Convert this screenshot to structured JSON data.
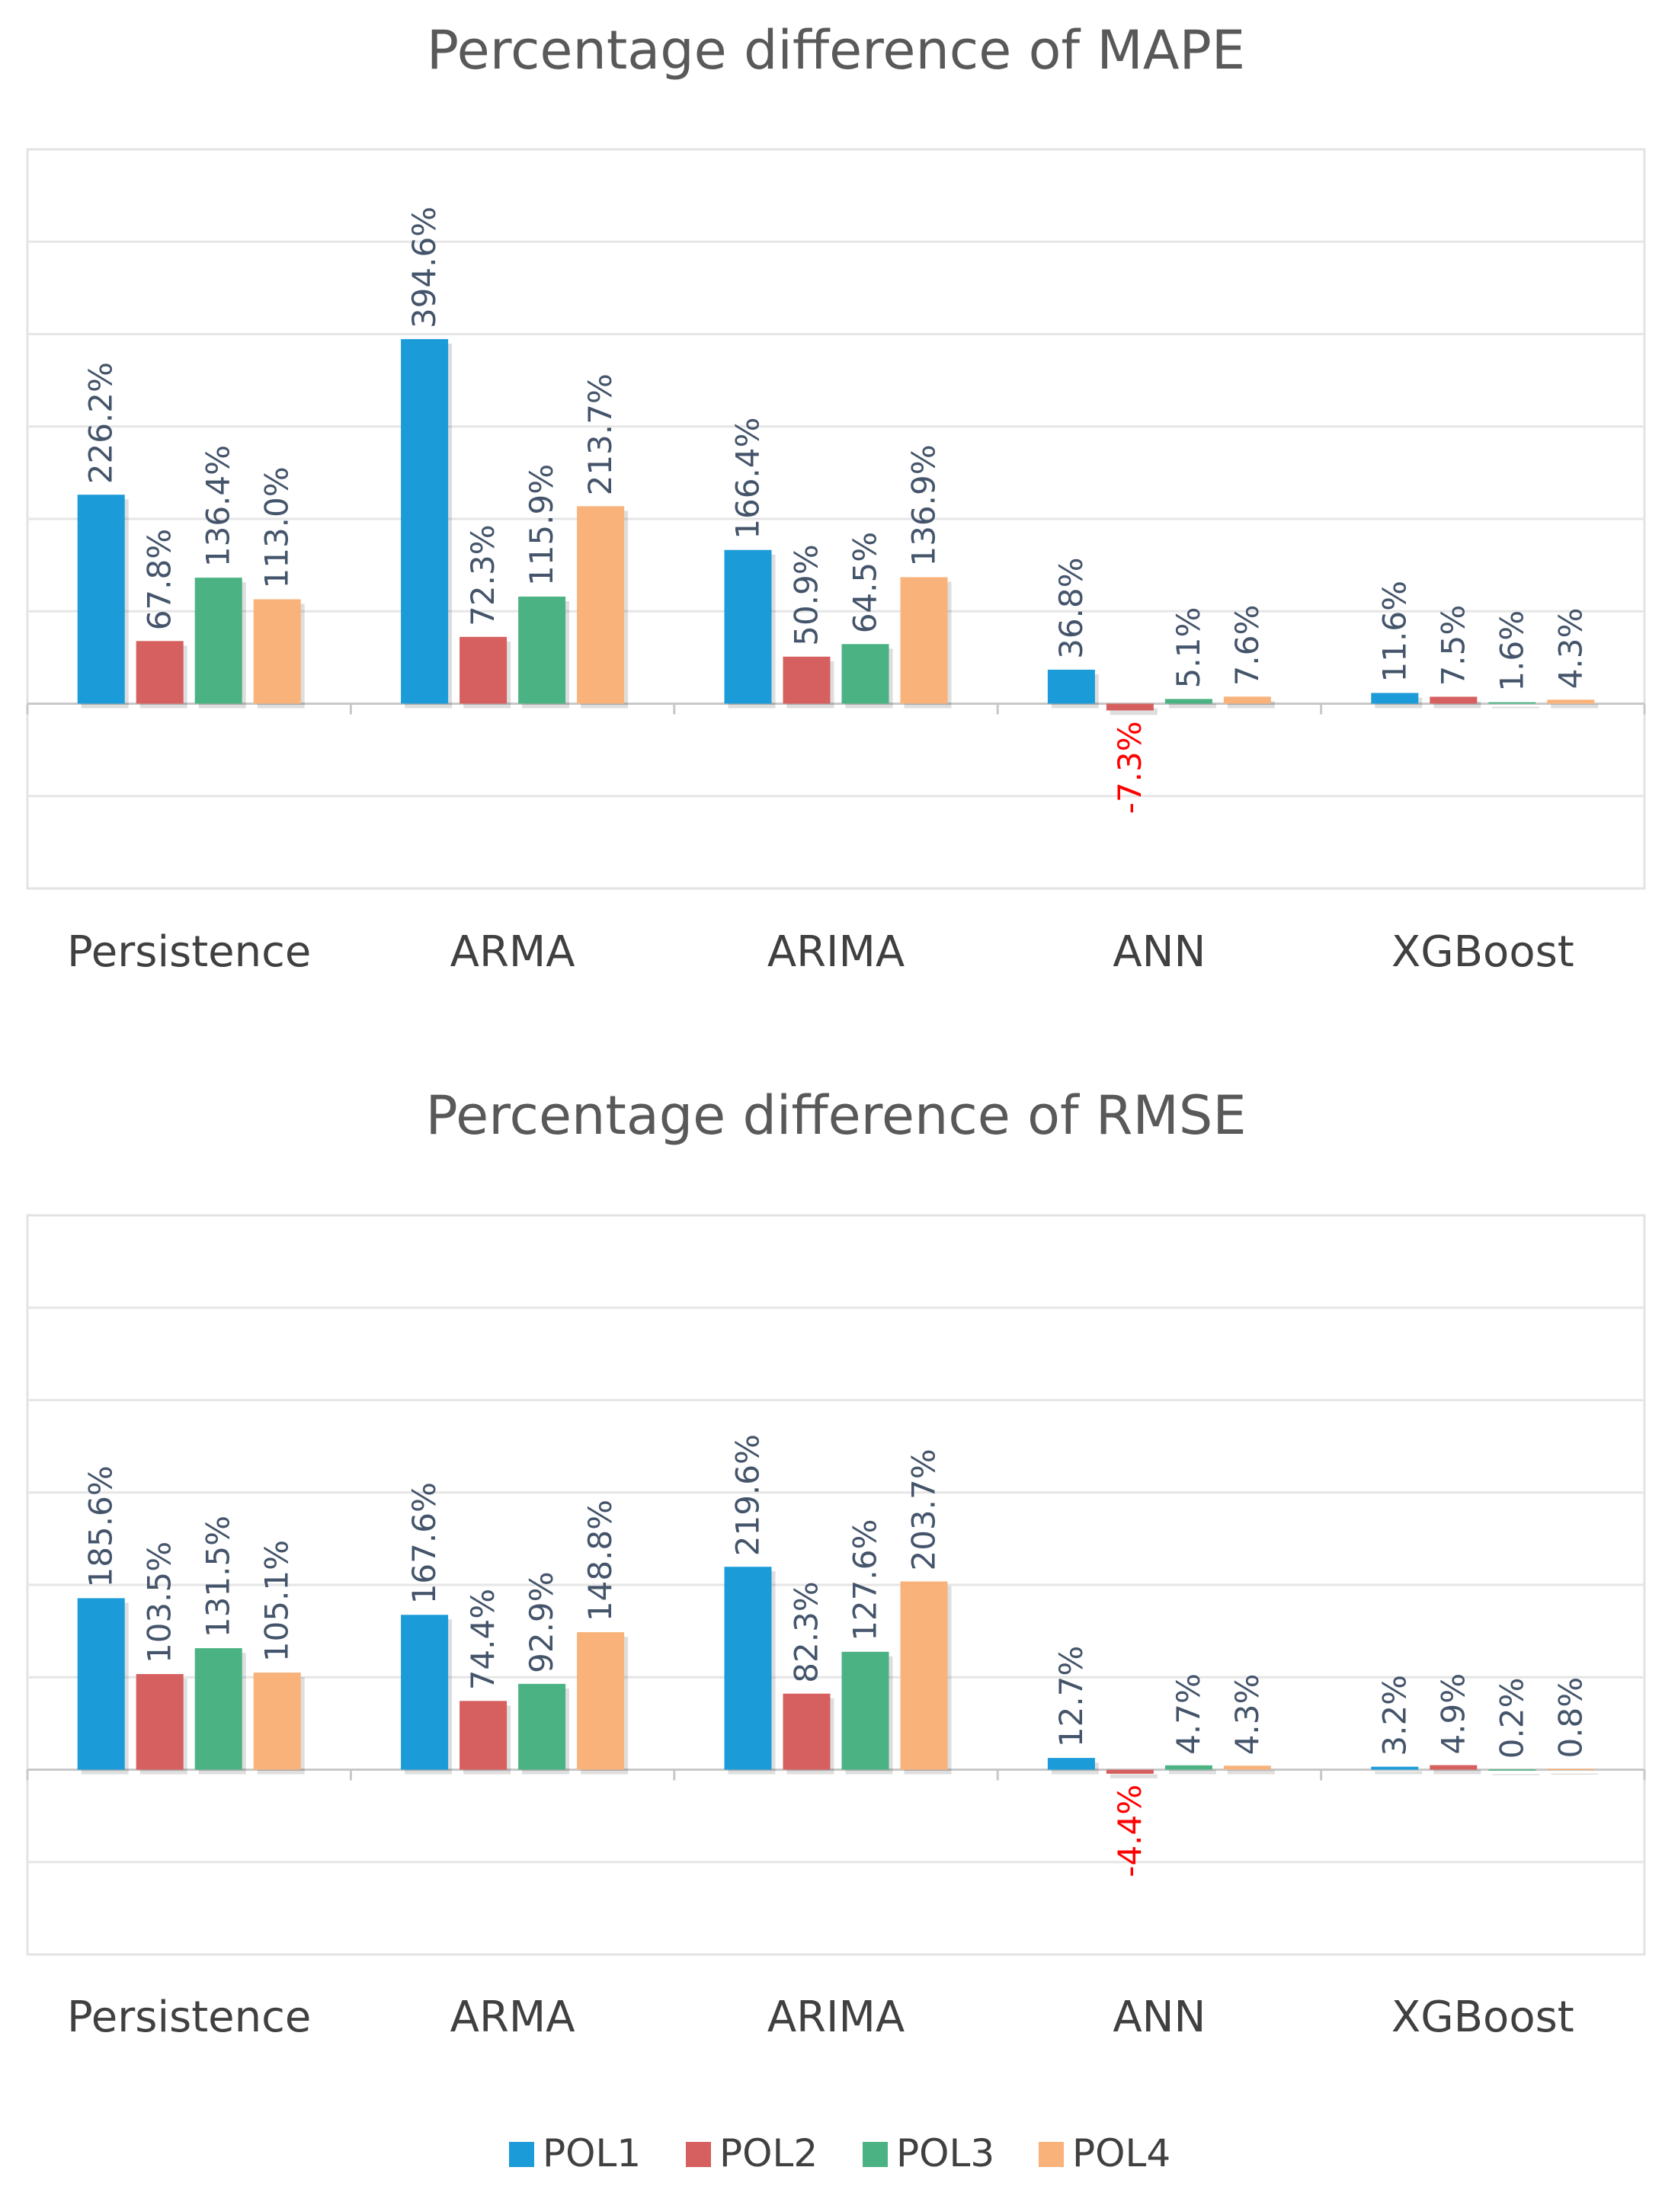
{
  "chart_data": [
    {
      "type": "bar",
      "title": "Percentage difference of MAPE",
      "categories": [
        "Persistence",
        "ARMA",
        "ARIMA",
        "ANN",
        "XGBoost"
      ],
      "series": [
        {
          "name": "POL1",
          "values": [
            226.2,
            394.6,
            166.4,
            36.8,
            11.6
          ],
          "labels": [
            "226.2%",
            "394.6%",
            "166.4%",
            "36.8%",
            "11.6%"
          ]
        },
        {
          "name": "POL2",
          "values": [
            67.8,
            72.3,
            50.9,
            -7.3,
            7.5
          ],
          "labels": [
            "67.8%",
            "72.3%",
            "50.9%",
            "-7.3%",
            "7.5%"
          ]
        },
        {
          "name": "POL3",
          "values": [
            136.4,
            115.9,
            64.5,
            5.1,
            1.6
          ],
          "labels": [
            "136.4%",
            "115.9%",
            "64.5%",
            "5.1%",
            "1.6%"
          ]
        },
        {
          "name": "POL4",
          "values": [
            113.0,
            213.7,
            136.9,
            7.6,
            4.3
          ],
          "labels": [
            "113.0%",
            "213.7%",
            "136.9%",
            "7.6%",
            "4.3%"
          ]
        }
      ],
      "ylim": [
        -200,
        600
      ],
      "grid": true,
      "xlabel": "",
      "ylabel": ""
    },
    {
      "type": "bar",
      "title": "Percentage difference of RMSE",
      "categories": [
        "Persistence",
        "ARMA",
        "ARIMA",
        "ANN",
        "XGBoost"
      ],
      "series": [
        {
          "name": "POL1",
          "values": [
            185.6,
            167.6,
            219.6,
            12.7,
            3.2
          ],
          "labels": [
            "185.6%",
            "167.6%",
            "219.6%",
            "12.7%",
            "3.2%"
          ]
        },
        {
          "name": "POL2",
          "values": [
            103.5,
            74.4,
            82.3,
            -4.4,
            4.9
          ],
          "labels": [
            "103.5%",
            "74.4%",
            "82.3%",
            "-4.4%",
            "4.9%"
          ]
        },
        {
          "name": "POL3",
          "values": [
            131.5,
            92.9,
            127.6,
            4.7,
            0.2
          ],
          "labels": [
            "131.5%",
            "92.9%",
            "127.6%",
            "4.7%",
            "0.2%"
          ]
        },
        {
          "name": "POL4",
          "values": [
            105.1,
            148.8,
            203.7,
            4.3,
            0.8
          ],
          "labels": [
            "105.1%",
            "148.8%",
            "203.7%",
            "4.3%",
            "0.8%"
          ]
        }
      ],
      "ylim": [
        -200,
        600
      ],
      "grid": true,
      "xlabel": "",
      "ylabel": ""
    }
  ],
  "legend": {
    "placement": "bottom",
    "items": [
      "POL1",
      "POL2",
      "POL3",
      "POL4"
    ]
  },
  "colors": {
    "POL1": "#1b9bd8",
    "POL2": "#d65f5f",
    "POL3": "#4bb383",
    "POL4": "#f8b27a",
    "positive_label": "#44546a",
    "negative_label": "#ff0000",
    "grid": "#e6e6e6",
    "axis": "#c8c8c8",
    "frame": "#e3e3e3"
  }
}
